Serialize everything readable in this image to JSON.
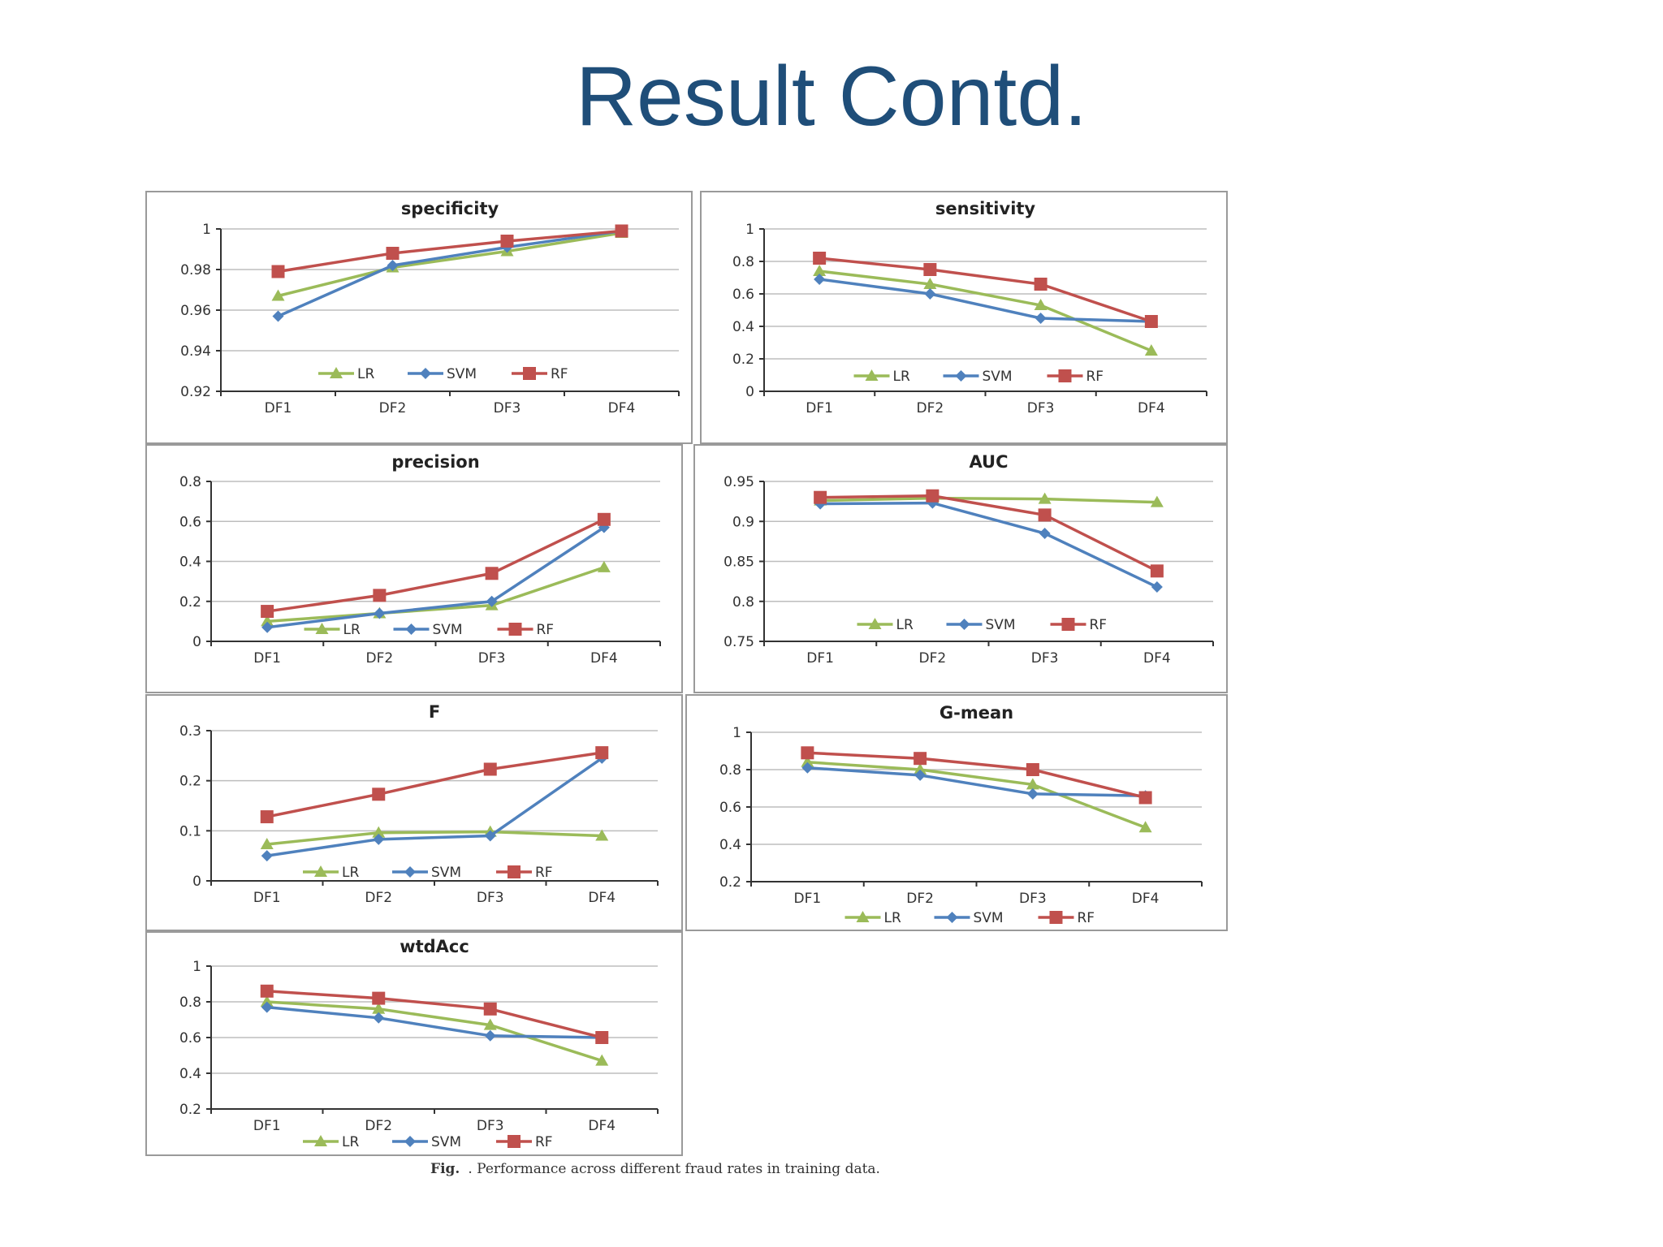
{
  "slide": {
    "title": "Result Contd."
  },
  "caption": {
    "label": "Fig.",
    "text": ". Performance across different fraud rates in training data."
  },
  "colors": {
    "LR": "#9bbb59",
    "SVM": "#4f81bd",
    "RF": "#c0504d"
  },
  "chart_data": [
    {
      "type": "line",
      "title": "specificity",
      "categories": [
        "DF1",
        "DF2",
        "DF3",
        "DF4"
      ],
      "ylim": [
        0.92,
        1
      ],
      "yticks": [
        "0.92",
        "0.94",
        "0.96",
        "0.98",
        "1"
      ],
      "yticks_values": [
        0.92,
        0.94,
        0.96,
        0.98,
        1
      ],
      "series": [
        {
          "name": "LR",
          "values": [
            0.967,
            0.981,
            0.989,
            0.998
          ]
        },
        {
          "name": "SVM",
          "values": [
            0.957,
            0.982,
            0.991,
            0.999
          ]
        },
        {
          "name": "RF",
          "values": [
            0.979,
            0.988,
            0.994,
            0.999
          ]
        }
      ],
      "legend": "bottom-inside"
    },
    {
      "type": "line",
      "title": "sensitivity",
      "categories": [
        "DF1",
        "DF2",
        "DF3",
        "DF4"
      ],
      "ylim": [
        0,
        1
      ],
      "yticks": [
        "0",
        "0.2",
        "0.4",
        "0.6",
        "0.8",
        "1"
      ],
      "yticks_values": [
        0,
        0.2,
        0.4,
        0.6,
        0.8,
        1
      ],
      "series": [
        {
          "name": "LR",
          "values": [
            0.74,
            0.66,
            0.53,
            0.25
          ]
        },
        {
          "name": "SVM",
          "values": [
            0.69,
            0.6,
            0.45,
            0.43
          ]
        },
        {
          "name": "RF",
          "values": [
            0.82,
            0.75,
            0.66,
            0.43
          ]
        }
      ],
      "legend": "bottom-inside"
    },
    {
      "type": "line",
      "title": "precision",
      "categories": [
        "DF1",
        "DF2",
        "DF3",
        "DF4"
      ],
      "ylim": [
        0,
        0.8
      ],
      "yticks": [
        "0",
        "0.2",
        "0.4",
        "0.6",
        "0.8"
      ],
      "yticks_values": [
        0,
        0.2,
        0.4,
        0.6,
        0.8
      ],
      "series": [
        {
          "name": "LR",
          "values": [
            0.1,
            0.14,
            0.18,
            0.37
          ]
        },
        {
          "name": "SVM",
          "values": [
            0.07,
            0.14,
            0.2,
            0.57
          ]
        },
        {
          "name": "RF",
          "values": [
            0.15,
            0.23,
            0.34,
            0.61
          ]
        }
      ],
      "legend": "bottom-inside"
    },
    {
      "type": "line",
      "title": "AUC",
      "categories": [
        "DF1",
        "DF2",
        "DF3",
        "DF4"
      ],
      "ylim": [
        0.75,
        0.95
      ],
      "yticks": [
        "0.75",
        "0.8",
        "0.85",
        "0.9",
        "0.95"
      ],
      "yticks_values": [
        0.75,
        0.8,
        0.85,
        0.9,
        0.95
      ],
      "series": [
        {
          "name": "LR",
          "values": [
            0.926,
            0.929,
            0.928,
            0.924
          ]
        },
        {
          "name": "SVM",
          "values": [
            0.922,
            0.923,
            0.885,
            0.818
          ]
        },
        {
          "name": "RF",
          "values": [
            0.93,
            0.932,
            0.908,
            0.838
          ]
        }
      ],
      "legend": "bottom-inside"
    },
    {
      "type": "line",
      "title": "F",
      "categories": [
        "DF1",
        "DF2",
        "DF3",
        "DF4"
      ],
      "ylim": [
        0,
        0.3
      ],
      "yticks": [
        "0",
        "0.1",
        "0.2",
        "0.3"
      ],
      "yticks_values": [
        0,
        0.1,
        0.2,
        0.3
      ],
      "series": [
        {
          "name": "LR",
          "values": [
            0.073,
            0.096,
            0.098,
            0.09
          ]
        },
        {
          "name": "SVM",
          "values": [
            0.05,
            0.083,
            0.09,
            0.245
          ]
        },
        {
          "name": "RF",
          "values": [
            0.128,
            0.173,
            0.223,
            0.256
          ]
        }
      ],
      "legend": "bottom-inside"
    },
    {
      "type": "line",
      "title": "G-mean",
      "categories": [
        "DF1",
        "DF2",
        "DF3",
        "DF4"
      ],
      "ylim": [
        0.2,
        1
      ],
      "yticks": [
        "0.2",
        "0.4",
        "0.6",
        "0.8",
        "1"
      ],
      "yticks_values": [
        0.2,
        0.4,
        0.6,
        0.8,
        1
      ],
      "series": [
        {
          "name": "LR",
          "values": [
            0.84,
            0.8,
            0.72,
            0.49
          ]
        },
        {
          "name": "SVM",
          "values": [
            0.81,
            0.77,
            0.67,
            0.66
          ]
        },
        {
          "name": "RF",
          "values": [
            0.89,
            0.86,
            0.8,
            0.65
          ]
        }
      ],
      "legend": "below-axis"
    },
    {
      "type": "line",
      "title": "wtdAcc",
      "categories": [
        "DF1",
        "DF2",
        "DF3",
        "DF4"
      ],
      "ylim": [
        0.2,
        1
      ],
      "yticks": [
        "0.2",
        "0.4",
        "0.6",
        "0.8",
        "1"
      ],
      "yticks_values": [
        0.2,
        0.4,
        0.6,
        0.8,
        1
      ],
      "series": [
        {
          "name": "LR",
          "values": [
            0.8,
            0.76,
            0.67,
            0.47
          ]
        },
        {
          "name": "SVM",
          "values": [
            0.77,
            0.71,
            0.61,
            0.6
          ]
        },
        {
          "name": "RF",
          "values": [
            0.86,
            0.82,
            0.76,
            0.6
          ]
        }
      ],
      "legend": "below-axis"
    }
  ]
}
